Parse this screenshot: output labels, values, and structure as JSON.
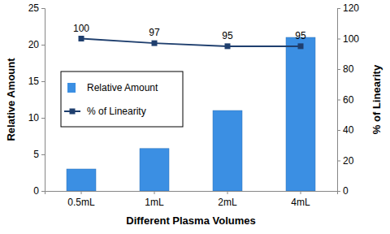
{
  "chart_data": {
    "type": "bar",
    "x_label": "Different Plasma Volumes",
    "y_label": "Relative Amount",
    "y2_label": "% of Linearity",
    "categories": [
      "0.5mL",
      "1mL",
      "2mL",
      "4mL"
    ],
    "series": [
      {
        "name": "Relative Amount",
        "type": "bar",
        "color": "#3b8fe3",
        "values": [
          3,
          5.8,
          11,
          21
        ]
      },
      {
        "name": "% of Linearity",
        "type": "line",
        "axis": "y2",
        "color": "#1f3f6e",
        "marker": "square",
        "data_labels": true,
        "values": [
          100,
          97,
          95,
          95
        ]
      }
    ],
    "ylim": [
      0,
      25
    ],
    "yticks": [
      0,
      5,
      10,
      15,
      20,
      25
    ],
    "y2lim": [
      0,
      120
    ],
    "y2ticks": [
      0,
      20,
      40,
      60,
      80,
      100,
      120
    ],
    "grid": false,
    "legend": "left"
  }
}
